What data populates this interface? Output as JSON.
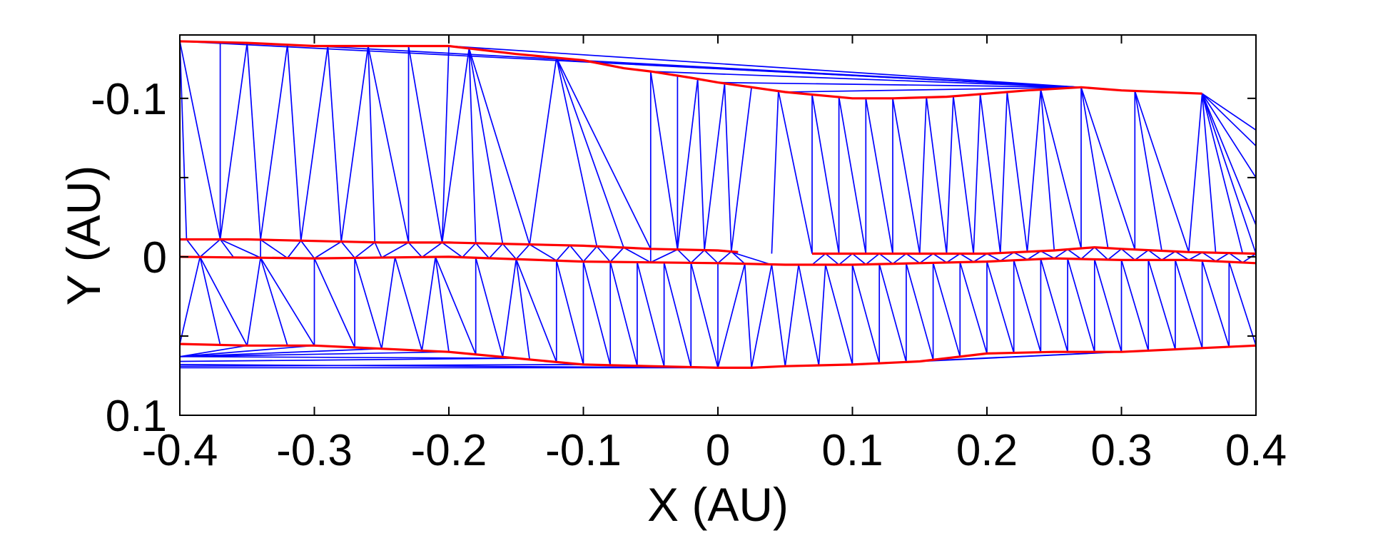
{
  "chart_data": {
    "type": "line",
    "title": "",
    "xlabel": "X (AU)",
    "ylabel": "Y (AU)",
    "xlim": [
      -0.4,
      0.4
    ],
    "ylim": [
      -0.14,
      0.1
    ],
    "y_axis_inverted": true,
    "x_ticks": [
      -0.4,
      -0.3,
      -0.2,
      -0.1,
      0,
      0.1,
      0.2,
      0.3,
      0.4
    ],
    "x_tick_labels": [
      "-0.4",
      "-0.3",
      "-0.2",
      "-0.1",
      "0",
      "0.1",
      "0.2",
      "0.3",
      "0.4"
    ],
    "y_ticks": [
      -0.1,
      0,
      0.1
    ],
    "y_tick_labels": [
      "-0.1",
      "0",
      "0.1"
    ],
    "y_minor_ticks": [
      -0.05,
      0.05
    ],
    "grid": false,
    "colors": {
      "boundary": "#ff0000",
      "triangulation": "#0000ff",
      "axes": "#000000"
    },
    "series": [
      {
        "role": "boundary-top",
        "x": [
          -0.4,
          -0.35,
          -0.3,
          -0.25,
          -0.2,
          -0.15,
          -0.1,
          -0.07,
          -0.05,
          -0.02,
          0.0,
          0.05,
          0.1,
          0.13,
          0.17,
          0.2,
          0.23,
          0.27,
          0.3,
          0.33,
          0.36
        ],
        "y": [
          -0.136,
          -0.135,
          -0.133,
          -0.133,
          -0.133,
          -0.128,
          -0.124,
          -0.119,
          -0.117,
          -0.113,
          -0.11,
          -0.104,
          -0.1,
          -0.1,
          -0.101,
          -0.103,
          -0.105,
          -0.107,
          -0.105,
          -0.104,
          -0.103
        ]
      },
      {
        "role": "upper-mid",
        "x": [
          -0.4,
          -0.35,
          -0.3,
          -0.25,
          -0.2,
          -0.15,
          -0.1,
          -0.05,
          0.0,
          0.015
        ],
        "y": [
          -0.011,
          -0.011,
          -0.01,
          -0.009,
          -0.009,
          -0.008,
          -0.007,
          -0.005,
          -0.004,
          -0.003
        ]
      },
      {
        "role": "upper-mid-right",
        "x": [
          0.07,
          0.1,
          0.15,
          0.2,
          0.25,
          0.28,
          0.3,
          0.35,
          0.4
        ],
        "y": [
          -0.002,
          -0.002,
          -0.002,
          -0.002,
          -0.004,
          -0.006,
          -0.005,
          -0.003,
          -0.002
        ]
      },
      {
        "role": "lower-mid",
        "x": [
          -0.4,
          -0.3,
          -0.2,
          -0.1,
          0.0,
          0.05,
          0.1,
          0.15,
          0.2,
          0.25,
          0.3,
          0.35,
          0.4
        ],
        "y": [
          0.0,
          0.001,
          0.0,
          0.003,
          0.004,
          0.005,
          0.005,
          0.004,
          0.003,
          0.001,
          0.002,
          0.002,
          0.004
        ]
      },
      {
        "role": "boundary-bottom",
        "x": [
          -0.4,
          -0.35,
          -0.3,
          -0.25,
          -0.2,
          -0.15,
          -0.1,
          -0.05,
          0.0,
          0.025,
          0.05,
          0.1,
          0.15,
          0.2,
          0.25,
          0.3,
          0.35,
          0.4
        ],
        "y": [
          0.055,
          0.056,
          0.056,
          0.058,
          0.06,
          0.064,
          0.068,
          0.069,
          0.07,
          0.07,
          0.069,
          0.068,
          0.066,
          0.061,
          0.06,
          0.06,
          0.058,
          0.056
        ]
      }
    ]
  }
}
